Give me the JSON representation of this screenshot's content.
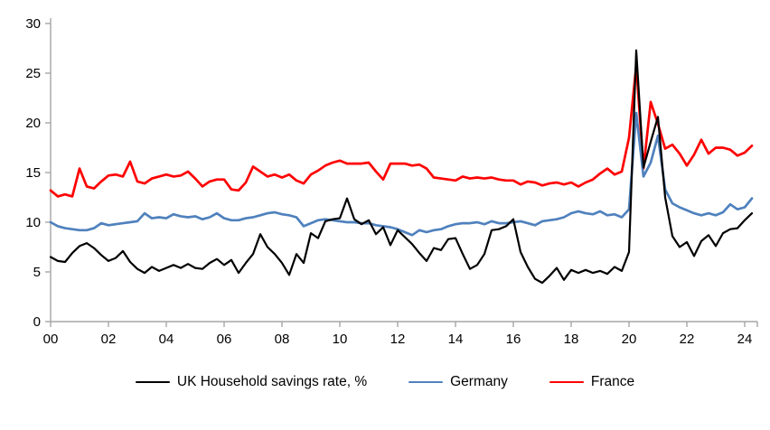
{
  "chart_data": {
    "type": "line",
    "title": "",
    "grid": false,
    "legend_position": "bottom",
    "axis_color": "#a6a6a6",
    "x_axis": {
      "start_year": 2000,
      "frequency": "quarterly",
      "tick_years": [
        0,
        2,
        4,
        6,
        8,
        10,
        12,
        14,
        16,
        18,
        20,
        22,
        24
      ],
      "tick_labels": [
        "00",
        "02",
        "04",
        "06",
        "08",
        "10",
        "12",
        "14",
        "16",
        "18",
        "20",
        "22",
        "24"
      ]
    },
    "y_axis": {
      "min": 0,
      "max": 30,
      "ticks": [
        0,
        5,
        10,
        15,
        20,
        25,
        30
      ],
      "tick_labels": [
        "0",
        "5",
        "10",
        "15",
        "20",
        "25",
        "30"
      ]
    },
    "series": [
      {
        "name": "UK Household savings rate, %",
        "color": "#000000",
        "stroke_width": 2.2,
        "values": [
          6.5,
          6.1,
          6.0,
          6.9,
          7.6,
          7.9,
          7.4,
          6.7,
          6.1,
          6.4,
          7.1,
          6.0,
          5.3,
          4.9,
          5.5,
          5.1,
          5.4,
          5.7,
          5.4,
          5.8,
          5.4,
          5.3,
          5.9,
          6.3,
          5.7,
          6.2,
          4.9,
          5.9,
          6.8,
          8.8,
          7.5,
          6.8,
          5.9,
          4.7,
          6.8,
          5.9,
          8.9,
          8.4,
          10.1,
          10.3,
          10.4,
          12.4,
          10.3,
          9.8,
          10.2,
          8.8,
          9.5,
          7.7,
          9.2,
          8.5,
          7.8,
          6.9,
          6.1,
          7.4,
          7.2,
          8.3,
          8.4,
          6.8,
          5.3,
          5.7,
          6.8,
          9.2,
          9.3,
          9.6,
          10.3,
          7.0,
          5.5,
          4.3,
          3.9,
          4.6,
          5.4,
          4.2,
          5.2,
          4.9,
          5.2,
          4.9,
          5.1,
          4.8,
          5.5,
          5.1,
          7.0,
          27.3,
          15.5,
          18.1,
          20.6,
          12.5,
          8.6,
          7.5,
          8.0,
          6.6,
          8.1,
          8.7,
          7.6,
          8.9,
          9.3,
          9.4,
          10.2,
          10.9
        ]
      },
      {
        "name": "Germany",
        "color": "#4f81bd",
        "stroke_width": 2.7,
        "values": [
          10.0,
          9.6,
          9.4,
          9.3,
          9.2,
          9.2,
          9.4,
          9.9,
          9.7,
          9.8,
          9.9,
          10.0,
          10.1,
          10.9,
          10.4,
          10.5,
          10.4,
          10.8,
          10.6,
          10.5,
          10.6,
          10.3,
          10.5,
          10.9,
          10.4,
          10.2,
          10.2,
          10.4,
          10.5,
          10.7,
          10.9,
          11.0,
          10.8,
          10.7,
          10.5,
          9.6,
          9.9,
          10.2,
          10.3,
          10.2,
          10.1,
          10.0,
          10.0,
          9.9,
          9.9,
          9.7,
          9.6,
          9.5,
          9.3,
          9.0,
          8.7,
          9.2,
          9.0,
          9.2,
          9.3,
          9.6,
          9.8,
          9.9,
          9.9,
          10.0,
          9.8,
          10.1,
          9.9,
          9.9,
          10.0,
          10.1,
          9.9,
          9.7,
          10.1,
          10.2,
          10.3,
          10.5,
          10.9,
          11.1,
          10.9,
          10.8,
          11.1,
          10.7,
          10.8,
          10.5,
          11.3,
          21.0,
          14.6,
          16.0,
          18.7,
          13.3,
          11.9,
          11.5,
          11.2,
          10.9,
          10.7,
          10.9,
          10.7,
          11.0,
          11.8,
          11.3,
          11.5,
          12.4
        ]
      },
      {
        "name": "France",
        "color": "#ff0000",
        "stroke_width": 2.7,
        "values": [
          13.2,
          12.6,
          12.8,
          12.6,
          15.4,
          13.6,
          13.4,
          14.1,
          14.7,
          14.8,
          14.6,
          16.1,
          14.1,
          13.9,
          14.4,
          14.6,
          14.8,
          14.6,
          14.7,
          15.1,
          14.4,
          13.6,
          14.1,
          14.3,
          14.3,
          13.3,
          13.2,
          14.0,
          15.6,
          15.1,
          14.6,
          14.8,
          14.5,
          14.8,
          14.2,
          13.9,
          14.8,
          15.2,
          15.7,
          16.0,
          16.2,
          15.9,
          15.9,
          15.9,
          16.0,
          15.1,
          14.3,
          15.9,
          15.9,
          15.9,
          15.7,
          15.8,
          15.4,
          14.5,
          14.4,
          14.3,
          14.2,
          14.6,
          14.4,
          14.5,
          14.4,
          14.5,
          14.3,
          14.2,
          14.2,
          13.8,
          14.1,
          14.0,
          13.7,
          13.9,
          14.0,
          13.8,
          14.0,
          13.6,
          14.0,
          14.3,
          14.9,
          15.4,
          14.8,
          15.1,
          18.5,
          25.8,
          15.4,
          22.1,
          19.9,
          17.4,
          17.8,
          16.9,
          15.7,
          16.8,
          18.3,
          16.9,
          17.5,
          17.5,
          17.3,
          16.7,
          17.0,
          17.7
        ]
      }
    ]
  }
}
